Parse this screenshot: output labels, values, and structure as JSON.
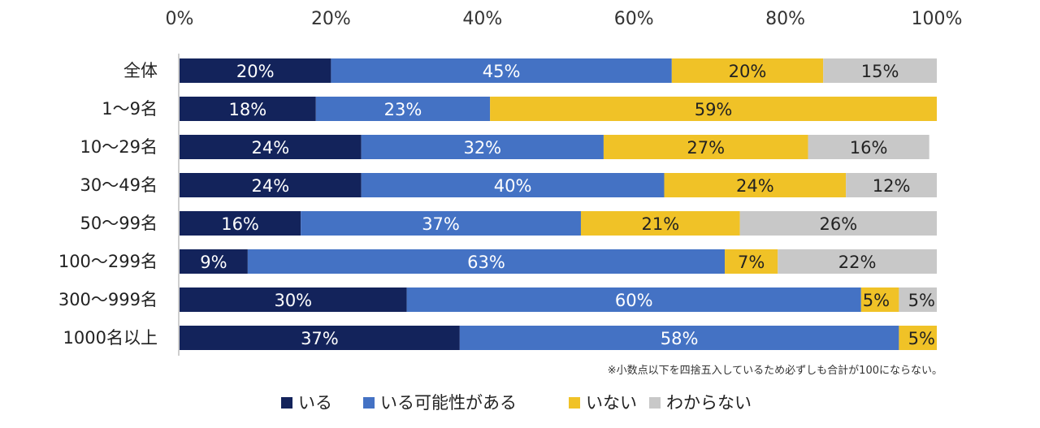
{
  "chart_data": {
    "type": "bar",
    "orientation": "horizontal",
    "stacked": true,
    "percent_stacked": true,
    "categories": [
      "全体",
      "1～9名",
      "10～29名",
      "30～49名",
      "50～99名",
      "100～299名",
      "300～999名",
      "1000名以上"
    ],
    "series": [
      {
        "name": "いる",
        "color": "#13235b",
        "label_color": "#ffffff",
        "values": [
          20,
          18,
          24,
          24,
          16,
          9,
          30,
          37
        ]
      },
      {
        "name": "いる可能性がある",
        "color": "#4472c4",
        "label_color": "#ffffff",
        "values": [
          45,
          23,
          32,
          40,
          37,
          63,
          60,
          58
        ]
      },
      {
        "name": "いない",
        "color": "#f0c227",
        "label_color": "#222222",
        "values": [
          20,
          59,
          27,
          24,
          21,
          7,
          5,
          5
        ]
      },
      {
        "name": "わからない",
        "color": "#c8c8c8",
        "label_color": "#222222",
        "values": [
          15,
          0,
          16,
          12,
          26,
          22,
          5,
          0
        ]
      }
    ],
    "xlim": [
      0,
      100
    ],
    "x_ticks": [
      "0%",
      "20%",
      "40%",
      "60%",
      "80%",
      "100%"
    ],
    "x_tick_values": [
      0,
      20,
      40,
      60,
      80,
      100
    ],
    "x_axis_position": "top",
    "value_suffix": "%",
    "grid": false,
    "legend_position": "bottom",
    "note": "※小数点以下を四捨五入しているため必ずしも合計が100にならない。"
  }
}
